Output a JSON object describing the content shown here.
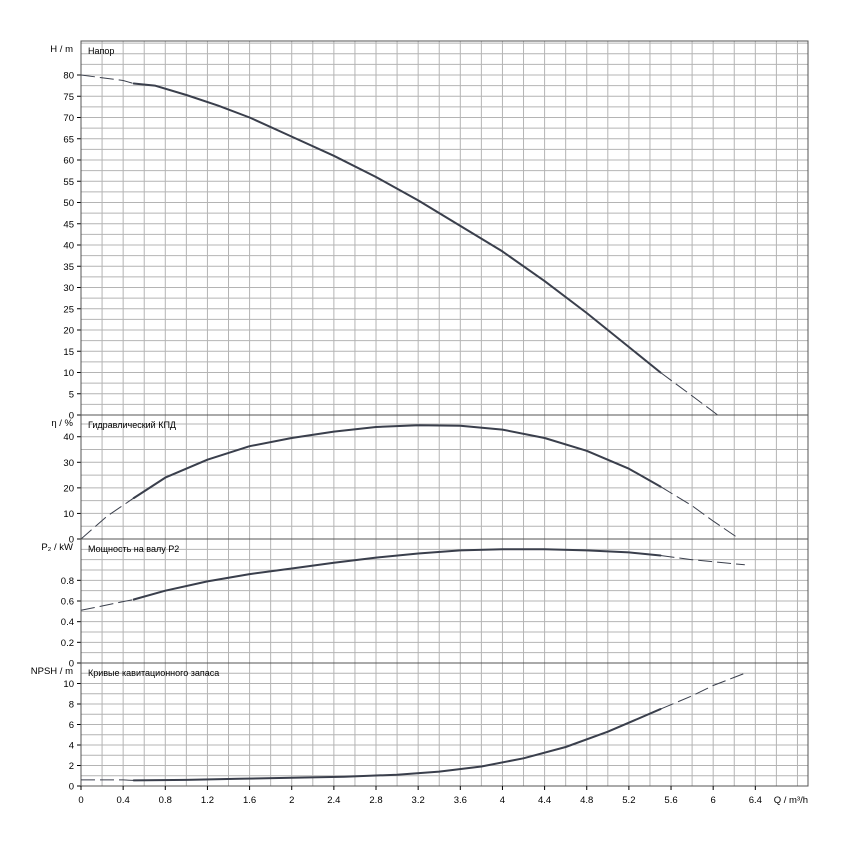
{
  "x_axis": {
    "label": "Q / m³/h",
    "min": 0,
    "max": 6.9,
    "ticks": [
      "0",
      "0.4",
      "0.8",
      "1.2",
      "1.6",
      "2",
      "2.4",
      "2.8",
      "3.2",
      "3.6",
      "4",
      "4.4",
      "4.8",
      "5.2",
      "5.6",
      "6",
      "6.4"
    ]
  },
  "colors": {
    "curve": "#3a3f4c",
    "grid": "#b4b4b4",
    "frame": "#555555"
  },
  "chart_data": [
    {
      "type": "line",
      "title": "Напор",
      "ylabel": "H / m",
      "ylim": [
        0,
        88
      ],
      "yticks": [
        0,
        5,
        10,
        15,
        20,
        25,
        30,
        35,
        40,
        45,
        50,
        55,
        60,
        65,
        70,
        75,
        80
      ],
      "grid": true,
      "solid_range": [
        0.5,
        5.5
      ],
      "x": [
        0,
        0.4,
        0.5,
        0.7,
        1.0,
        1.3,
        1.6,
        2.0,
        2.4,
        2.8,
        3.2,
        3.6,
        4.0,
        4.4,
        4.8,
        5.2,
        5.5,
        5.8,
        6.0,
        6.25
      ],
      "y": [
        80,
        78.7,
        78,
        77.5,
        75.3,
        72.8,
        70,
        65.5,
        61,
        56,
        50.5,
        44.5,
        38.5,
        31.5,
        24,
        16,
        10,
        4.5,
        0.8,
        -4
      ]
    },
    {
      "type": "line",
      "title": "Гидравлический КПД",
      "ylabel": "η / %",
      "ylim": [
        0,
        48.5
      ],
      "yticks": [
        0,
        10,
        20,
        30,
        40
      ],
      "grid": true,
      "solid_range": [
        0.5,
        5.5
      ],
      "x": [
        0,
        0.25,
        0.5,
        0.8,
        1.2,
        1.6,
        2.0,
        2.4,
        2.8,
        3.2,
        3.6,
        4.0,
        4.4,
        4.8,
        5.2,
        5.5,
        5.8,
        6.0,
        6.25
      ],
      "y": [
        0,
        9,
        16,
        24,
        31,
        36.3,
        39.5,
        42,
        43.8,
        44.5,
        44.3,
        42.8,
        39.5,
        34.5,
        27.5,
        20.5,
        13,
        7,
        0
      ]
    },
    {
      "type": "line",
      "title": "Мощность на валу P2",
      "ylabel": "P₂ / kW",
      "ylim": [
        0,
        1.2
      ],
      "yticks": [
        "0",
        "0.2",
        "0.4",
        "0.6",
        "0.8"
      ],
      "grid": true,
      "solid_range": [
        0.5,
        5.5
      ],
      "x": [
        0,
        0.5,
        0.8,
        1.2,
        1.6,
        2.0,
        2.4,
        2.8,
        3.2,
        3.6,
        4.0,
        4.4,
        4.8,
        5.2,
        5.5,
        5.8,
        6.1,
        6.3
      ],
      "y": [
        0.51,
        0.615,
        0.7,
        0.79,
        0.86,
        0.915,
        0.97,
        1.02,
        1.06,
        1.09,
        1.1,
        1.1,
        1.09,
        1.07,
        1.04,
        1.0,
        0.97,
        0.95
      ]
    },
    {
      "type": "line",
      "title": "Кривые кавитационного запаса",
      "ylabel": "NPSH / m",
      "ylim": [
        0,
        12
      ],
      "yticks": [
        "0",
        "2",
        "4",
        "6",
        "8",
        "10"
      ],
      "grid": true,
      "solid_range": [
        0.5,
        5.5
      ],
      "x": [
        0,
        0.4,
        0.5,
        1.0,
        1.5,
        2.0,
        2.5,
        3.0,
        3.4,
        3.8,
        4.2,
        4.6,
        5.0,
        5.5,
        5.8,
        6.0,
        6.2,
        6.3
      ],
      "y": [
        0.6,
        0.6,
        0.55,
        0.6,
        0.7,
        0.8,
        0.9,
        1.1,
        1.4,
        1.9,
        2.7,
        3.8,
        5.3,
        7.5,
        8.8,
        9.8,
        10.6,
        11
      ]
    }
  ]
}
